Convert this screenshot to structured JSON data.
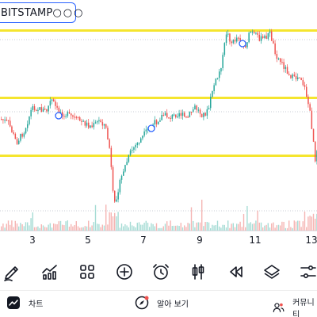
{
  "header": {
    "exchange": "BITSTAMP",
    "more_icon": "more-icon"
  },
  "chart": {
    "date_labels": [
      "3",
      "5",
      "7",
      "9",
      "11",
      "13"
    ],
    "colors": {
      "up": "#26a69a",
      "down": "#ef5350",
      "level_line": "#f5e52e",
      "grid": "#c9cdd6",
      "alert_marker": "#2962ff"
    },
    "level_lines_count": 3,
    "alert_markers_count": 3
  },
  "toolbar": {
    "items": [
      "pencil-icon",
      "indicators-icon",
      "layouts-icon",
      "add-icon",
      "alarm-icon",
      "candles-icon",
      "replay-icon",
      "layers-icon",
      "settings-sliders-icon"
    ]
  },
  "bottom_nav": {
    "items": [
      {
        "label": "차트",
        "icon": "chart-icon"
      },
      {
        "label": "알아 보기",
        "icon": "explore-icon"
      },
      {
        "label": "커뮤니티",
        "icon": "community-icon"
      }
    ]
  }
}
